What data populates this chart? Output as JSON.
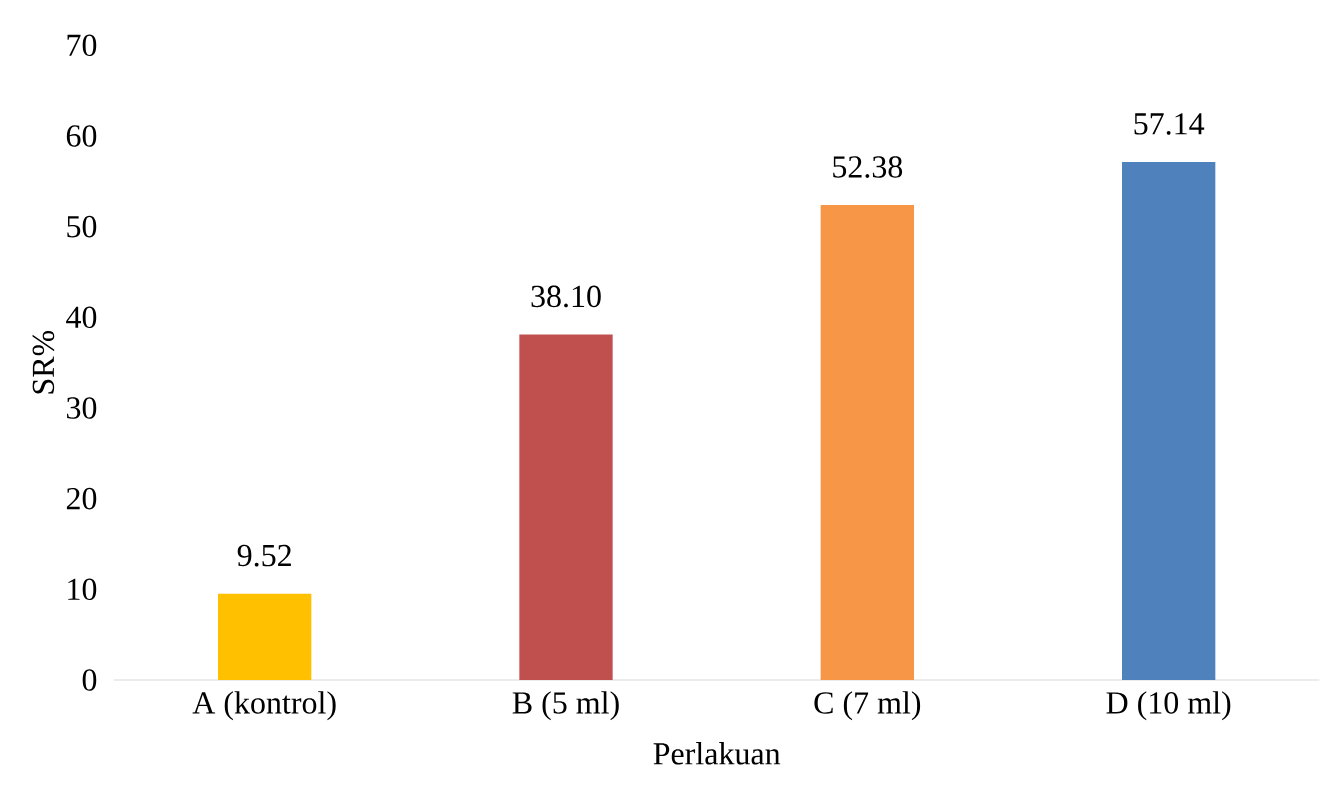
{
  "chart_data": {
    "type": "bar",
    "xlabel": "Perlakuan",
    "ylabel": "SR%",
    "categories": [
      "A (kontrol)",
      "B (5 ml)",
      "C (7 ml)",
      "D (10 ml)"
    ],
    "values": [
      9.52,
      38.1,
      52.38,
      57.14
    ],
    "value_labels": [
      "9.52",
      "38.10",
      "52.38",
      "57.14"
    ],
    "colors": [
      "#ffc000",
      "#c0504d",
      "#f79646",
      "#4f81bd"
    ],
    "ylim": [
      0,
      70
    ],
    "yticks": [
      0,
      10,
      20,
      30,
      40,
      50,
      60,
      70
    ]
  }
}
